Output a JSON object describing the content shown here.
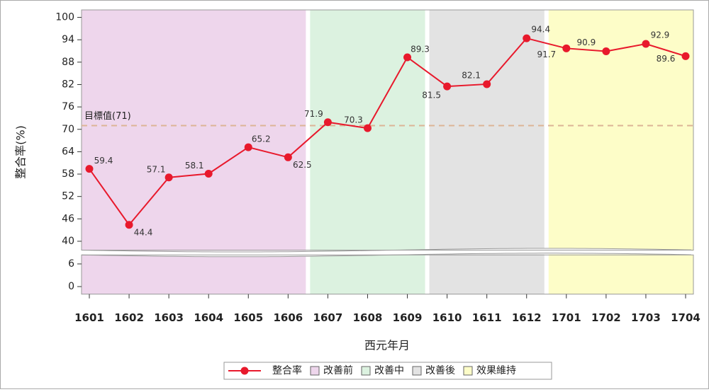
{
  "chart_data": {
    "type": "line",
    "x_label": "西元年月",
    "y_label": "整合率(%)",
    "categories": [
      "1601",
      "1602",
      "1603",
      "1604",
      "1605",
      "1606",
      "1607",
      "1608",
      "1609",
      "1610",
      "1611",
      "1612",
      "1701",
      "1702",
      "1703",
      "1704"
    ],
    "series": [
      {
        "name": "整合率",
        "color": "#e8192c",
        "values": [
          59.4,
          44.4,
          57.1,
          58.1,
          65.2,
          62.5,
          71.9,
          70.3,
          89.3,
          81.5,
          82.1,
          94.4,
          91.7,
          90.9,
          92.9,
          89.6
        ]
      }
    ],
    "ylim": [
      -2,
      102
    ],
    "ybreak": [
      8,
      38
    ],
    "yticks": [
      0,
      6,
      40,
      46,
      52,
      58,
      64,
      70,
      76,
      82,
      88,
      94,
      100
    ],
    "target": {
      "value": 71,
      "label": "目標值(71)",
      "color": "#dcb496"
    },
    "phases": [
      {
        "name": "改善前",
        "color": "#eed6ec",
        "span": [
          0,
          5
        ]
      },
      {
        "name": "改善中",
        "color": "#dcf2e0",
        "span": [
          6,
          8
        ]
      },
      {
        "name": "改善後",
        "color": "#e3e3e3",
        "span": [
          9,
          11
        ]
      },
      {
        "name": "效果維持",
        "color": "#fdfdc8",
        "span": [
          12,
          15
        ]
      }
    ]
  }
}
